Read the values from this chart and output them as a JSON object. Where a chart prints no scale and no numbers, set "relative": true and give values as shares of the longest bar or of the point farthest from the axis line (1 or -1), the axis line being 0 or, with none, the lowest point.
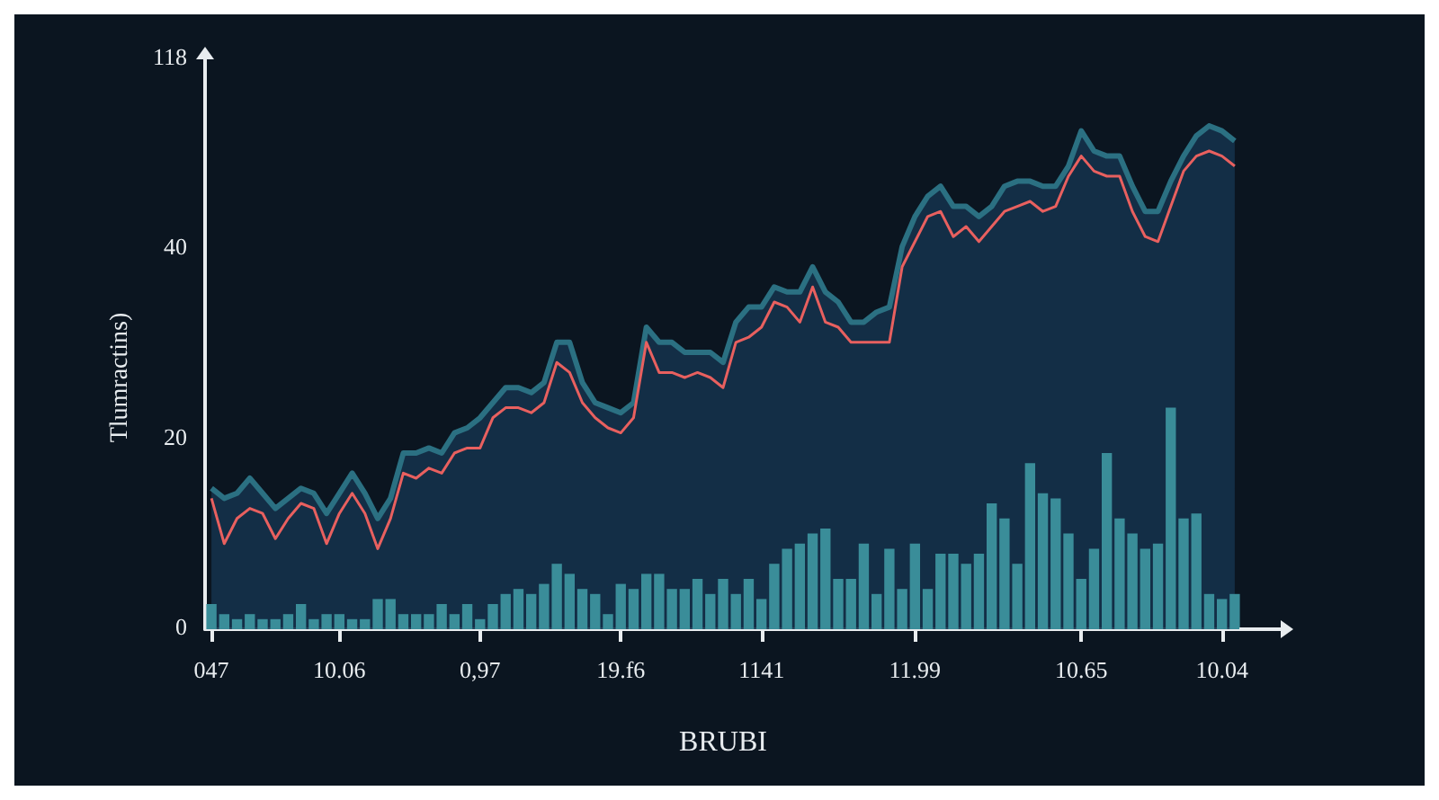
{
  "chart_data": {
    "type": "line",
    "xlabel": "BRUBI",
    "ylabel": "Tlumractins)",
    "relative": true,
    "annotations": [
      "0",
      "20",
      "40",
      "118"
    ],
    "categories": [
      "047",
      null,
      null,
      null,
      null,
      null,
      null,
      null,
      null,
      null,
      "10.06",
      null,
      null,
      null,
      null,
      null,
      null,
      null,
      null,
      null,
      null,
      "0,97",
      null,
      null,
      null,
      null,
      null,
      null,
      null,
      null,
      null,
      null,
      "19.f6",
      null,
      null,
      null,
      null,
      null,
      null,
      null,
      null,
      null,
      null,
      "1141",
      null,
      null,
      null,
      null,
      null,
      null,
      null,
      null,
      null,
      null,
      null,
      "11.99",
      null,
      null,
      null,
      null,
      null,
      null,
      null,
      null,
      null,
      null,
      null,
      null,
      "10.65",
      null,
      null,
      null,
      null,
      null,
      null,
      null,
      null,
      null,
      null,
      "10.04",
      null
    ],
    "series": [
      {
        "type": "area",
        "color": "#2b7082",
        "values": [
          0.28,
          0.26,
          0.27,
          0.3,
          0.27,
          0.24,
          0.26,
          0.28,
          0.27,
          0.23,
          0.27,
          0.31,
          0.27,
          0.22,
          0.26,
          0.35,
          0.35,
          0.36,
          0.35,
          0.39,
          0.4,
          0.42,
          0.45,
          0.48,
          0.48,
          0.47,
          0.49,
          0.57,
          0.57,
          0.49,
          0.45,
          0.44,
          0.43,
          0.45,
          0.6,
          0.57,
          0.57,
          0.55,
          0.55,
          0.55,
          0.53,
          0.61,
          0.64,
          0.64,
          0.68,
          0.67,
          0.67,
          0.72,
          0.67,
          0.65,
          0.61,
          0.61,
          0.63,
          0.64,
          0.76,
          0.82,
          0.86,
          0.88,
          0.84,
          0.84,
          0.82,
          0.84,
          0.88,
          0.89,
          0.89,
          0.88,
          0.88,
          0.92,
          0.99,
          0.95,
          0.94,
          0.94,
          0.88,
          0.83,
          0.83,
          0.89,
          0.94,
          0.98,
          1,
          0.99,
          0.97
        ]
      },
      {
        "color": "#e8605f",
        "values": [
          0.26,
          0.17,
          0.22,
          0.24,
          0.23,
          0.18,
          0.22,
          0.25,
          0.24,
          0.17,
          0.23,
          0.27,
          0.23,
          0.16,
          0.22,
          0.31,
          0.3,
          0.32,
          0.31,
          0.35,
          0.36,
          0.36,
          0.42,
          0.44,
          0.44,
          0.43,
          0.45,
          0.53,
          0.51,
          0.45,
          0.42,
          0.4,
          0.39,
          0.42,
          0.57,
          0.51,
          0.51,
          0.5,
          0.51,
          0.5,
          0.48,
          0.57,
          0.58,
          0.6,
          0.65,
          0.64,
          0.61,
          0.68,
          0.61,
          0.6,
          0.57,
          0.57,
          0.57,
          0.57,
          0.72,
          0.77,
          0.82,
          0.83,
          0.78,
          0.8,
          0.77,
          0.8,
          0.83,
          0.84,
          0.85,
          0.83,
          0.84,
          0.9,
          0.94,
          0.91,
          0.9,
          0.9,
          0.83,
          0.78,
          0.77,
          0.84,
          0.91,
          0.94,
          0.95,
          0.94,
          0.92
        ]
      },
      {
        "type": "bar",
        "color": "#3a8d99",
        "values": [
          0.05,
          0.03,
          0.02,
          0.03,
          0.02,
          0.02,
          0.03,
          0.05,
          0.02,
          0.03,
          0.03,
          0.02,
          0.02,
          0.06,
          0.06,
          0.03,
          0.03,
          0.03,
          0.05,
          0.03,
          0.05,
          0.02,
          0.05,
          0.07,
          0.08,
          0.07,
          0.09,
          0.13,
          0.11,
          0.08,
          0.07,
          0.03,
          0.09,
          0.08,
          0.11,
          0.11,
          0.08,
          0.08,
          0.1,
          0.07,
          0.1,
          0.07,
          0.1,
          0.06,
          0.13,
          0.16,
          0.17,
          0.19,
          0.2,
          0.1,
          0.1,
          0.17,
          0.07,
          0.16,
          0.08,
          0.17,
          0.08,
          0.15,
          0.15,
          0.13,
          0.15,
          0.25,
          0.22,
          0.13,
          0.33,
          0.27,
          0.26,
          0.19,
          0.1,
          0.16,
          0.35,
          0.22,
          0.19,
          0.16,
          0.17,
          0.44,
          0.22,
          0.23,
          0.07,
          0.06,
          0.07
        ]
      }
    ],
    "marker": "none",
    "line_style": "solid",
    "grid": false
  }
}
